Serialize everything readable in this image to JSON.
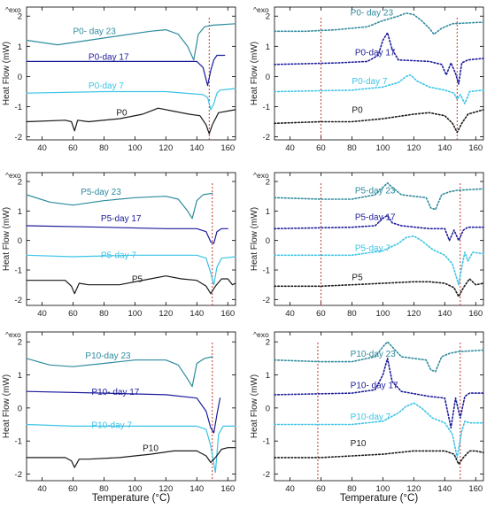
{
  "figure": {
    "xlabel": "Temperature (°C)",
    "ylabel": "Heat Flow (mW)",
    "exo_label": "^exo"
  },
  "colors": {
    "day23": "#2e8b9e",
    "day17": "#1c1c9a",
    "day7": "#3cc4e6",
    "base": "#1a1a1a",
    "marker": "#c0392b",
    "axis": "#000000"
  },
  "chart_data": [
    {
      "type": "line",
      "panel": "P0-first",
      "line_style": "solid",
      "xlim": [
        30,
        165
      ],
      "ylim": [
        -2.1,
        2.3
      ],
      "xticks": [
        40,
        60,
        80,
        100,
        120,
        140,
        160
      ],
      "yticks": [
        -2,
        -1,
        0,
        1,
        2
      ],
      "show_xtick_labels": true,
      "vlines": [
        148
      ],
      "series": [
        {
          "name": "P0- day 23",
          "key": "day23",
          "label_at": [
            60,
            1.4
          ],
          "x": [
            30,
            50,
            70,
            90,
            110,
            120,
            128,
            134,
            138,
            141,
            145,
            150,
            165
          ],
          "y": [
            1.2,
            1.05,
            1.2,
            1.35,
            1.5,
            1.55,
            1.4,
            1.0,
            0.55,
            1.4,
            1.65,
            1.7,
            1.75
          ]
        },
        {
          "name": "P0-day 17",
          "key": "day17",
          "label_at": [
            70,
            0.55
          ],
          "x": [
            30,
            80,
            120,
            140,
            144,
            147,
            149,
            151,
            153,
            158
          ],
          "y": [
            0.5,
            0.5,
            0.5,
            0.5,
            0.3,
            -0.3,
            0.2,
            0.55,
            0.7,
            0.7
          ]
        },
        {
          "name": "P0-day 7",
          "key": "day7",
          "label_at": [
            70,
            -0.4
          ],
          "x": [
            30,
            80,
            120,
            144,
            147,
            149,
            151,
            153,
            155,
            165
          ],
          "y": [
            -0.55,
            -0.5,
            -0.5,
            -0.6,
            -0.7,
            -1.1,
            -0.9,
            -0.55,
            -0.45,
            -0.4
          ]
        },
        {
          "name": "P0",
          "key": "base",
          "label_at": [
            88,
            -1.3
          ],
          "x": [
            30,
            55,
            59,
            61,
            63,
            70,
            90,
            105,
            115,
            125,
            135,
            142,
            146,
            148,
            150,
            154,
            165
          ],
          "y": [
            -1.5,
            -1.45,
            -1.5,
            -1.8,
            -1.45,
            -1.5,
            -1.4,
            -1.25,
            -1.05,
            -1.15,
            -1.25,
            -1.3,
            -1.6,
            -1.9,
            -1.6,
            -1.2,
            -1.1
          ]
        }
      ]
    },
    {
      "type": "line",
      "panel": "P0-second",
      "line_style": "dotted",
      "xlim": [
        30,
        165
      ],
      "ylim": [
        -2.1,
        2.3
      ],
      "xticks": [
        40,
        60,
        80,
        100,
        120,
        140,
        160
      ],
      "yticks": [
        -2,
        -1,
        0,
        1,
        2
      ],
      "show_xtick_labels": true,
      "vlines": [
        60,
        148
      ],
      "series": [
        {
          "name": "P0- day 23",
          "key": "day23",
          "label_at": [
            79,
            2.02
          ],
          "x": [
            30,
            50,
            70,
            90,
            100,
            110,
            115,
            120,
            125,
            130,
            133,
            138,
            145,
            165
          ],
          "y": [
            1.5,
            1.5,
            1.55,
            1.65,
            1.85,
            2.0,
            2.1,
            2.05,
            1.85,
            1.6,
            1.4,
            1.6,
            1.75,
            1.8
          ]
        },
        {
          "name": "P0-day 17",
          "key": "day17",
          "label_at": [
            82,
            0.7
          ],
          "x": [
            30,
            70,
            90,
            97,
            100,
            103,
            106,
            110,
            130,
            138,
            141,
            144,
            147,
            149,
            151,
            155,
            165
          ],
          "y": [
            0.4,
            0.45,
            0.5,
            0.7,
            1.2,
            1.45,
            0.9,
            0.55,
            0.5,
            0.4,
            0.05,
            0.45,
            0.1,
            -0.25,
            0.45,
            0.55,
            0.6
          ]
        },
        {
          "name": "P0-day 7",
          "key": "day7",
          "label_at": [
            80,
            -0.25
          ],
          "x": [
            30,
            80,
            100,
            110,
            115,
            118,
            122,
            130,
            140,
            146,
            148,
            150,
            153,
            156,
            165
          ],
          "y": [
            -0.5,
            -0.45,
            -0.35,
            -0.2,
            0.0,
            0.05,
            -0.15,
            -0.35,
            -0.45,
            -0.55,
            -0.75,
            -0.6,
            -0.9,
            -0.5,
            -0.45
          ]
        },
        {
          "name": "P0",
          "key": "base",
          "label_at": [
            80,
            -1.2
          ],
          "x": [
            30,
            60,
            80,
            100,
            120,
            130,
            140,
            145,
            148,
            151,
            155,
            165
          ],
          "y": [
            -1.55,
            -1.5,
            -1.5,
            -1.4,
            -1.25,
            -1.2,
            -1.3,
            -1.55,
            -1.85,
            -1.55,
            -1.25,
            -1.1
          ]
        }
      ]
    },
    {
      "type": "line",
      "panel": "P5-first",
      "line_style": "solid",
      "xlim": [
        30,
        165
      ],
      "ylim": [
        -2.2,
        2.3
      ],
      "xticks": [
        40,
        60,
        80,
        100,
        120,
        140,
        160
      ],
      "yticks": [
        -2,
        -1,
        0,
        1,
        2
      ],
      "show_xtick_labels": true,
      "vlines": [
        150
      ],
      "series": [
        {
          "name": "P5-day 23",
          "key": "day23",
          "label_at": [
            65,
            1.55
          ],
          "x": [
            30,
            45,
            60,
            80,
            100,
            120,
            128,
            134,
            137,
            140,
            144,
            150
          ],
          "y": [
            1.55,
            1.3,
            1.2,
            1.35,
            1.45,
            1.5,
            1.4,
            1.0,
            0.75,
            1.35,
            1.55,
            1.6
          ]
        },
        {
          "name": "P5-day 17",
          "key": "day17",
          "label_at": [
            78,
            0.65
          ],
          "x": [
            30,
            80,
            120,
            140,
            146,
            149,
            151,
            153,
            156,
            160
          ],
          "y": [
            0.5,
            0.45,
            0.4,
            0.4,
            0.3,
            -0.05,
            -0.1,
            0.3,
            0.4,
            0.4
          ]
        },
        {
          "name": "P5-day 7",
          "key": "day7",
          "label_at": [
            78,
            -0.6
          ],
          "x": [
            30,
            60,
            100,
            140,
            146,
            149,
            151,
            153,
            156,
            165
          ],
          "y": [
            -0.5,
            -0.55,
            -0.5,
            -0.5,
            -0.6,
            -1.1,
            -1.5,
            -0.9,
            -0.6,
            -0.55
          ]
        },
        {
          "name": "P5",
          "key": "base",
          "label_at": [
            98,
            -1.4
          ],
          "x": [
            30,
            55,
            59,
            61,
            64,
            70,
            90,
            110,
            120,
            130,
            140,
            146,
            149,
            152,
            156,
            160,
            163,
            165
          ],
          "y": [
            -1.35,
            -1.35,
            -1.55,
            -1.8,
            -1.45,
            -1.5,
            -1.5,
            -1.3,
            -1.2,
            -1.3,
            -1.35,
            -1.55,
            -1.8,
            -1.55,
            -1.3,
            -1.3,
            -1.5,
            -1.45
          ]
        }
      ]
    },
    {
      "type": "line",
      "panel": "P5-second",
      "line_style": "dotted",
      "xlim": [
        30,
        165
      ],
      "ylim": [
        -2.2,
        2.3
      ],
      "xticks": [
        40,
        60,
        80,
        100,
        120,
        140,
        160
      ],
      "yticks": [
        -2,
        -1,
        0,
        1,
        2
      ],
      "show_xtick_labels": true,
      "vlines": [
        60,
        150
      ],
      "series": [
        {
          "name": "P5-day 23",
          "key": "day23",
          "label_at": [
            82,
            1.6
          ],
          "x": [
            30,
            60,
            80,
            95,
            100,
            103,
            106,
            112,
            120,
            128,
            131,
            134,
            138,
            143,
            148,
            165
          ],
          "y": [
            1.45,
            1.4,
            1.4,
            1.55,
            1.8,
            1.95,
            1.8,
            1.55,
            1.5,
            1.45,
            1.1,
            1.05,
            1.55,
            1.65,
            1.7,
            1.75
          ]
        },
        {
          "name": "P5-day 17",
          "key": "day17",
          "label_at": [
            82,
            0.7
          ],
          "x": [
            30,
            80,
            95,
            100,
            103,
            106,
            112,
            130,
            140,
            143,
            146,
            149,
            152,
            155,
            165
          ],
          "y": [
            0.4,
            0.45,
            0.5,
            0.75,
            0.85,
            0.6,
            0.5,
            0.4,
            0.4,
            0.0,
            0.35,
            0.0,
            0.35,
            0.45,
            0.45
          ]
        },
        {
          "name": "P5-day 7",
          "key": "day7",
          "label_at": [
            82,
            -0.35
          ],
          "x": [
            30,
            80,
            100,
            110,
            115,
            120,
            125,
            132,
            140,
            145,
            149,
            151,
            153,
            155,
            158,
            165
          ],
          "y": [
            -0.5,
            -0.5,
            -0.35,
            -0.1,
            0.1,
            0.15,
            0.0,
            -0.3,
            -0.5,
            -0.8,
            -1.5,
            -0.9,
            -0.4,
            -0.7,
            -0.4,
            -0.45
          ]
        },
        {
          "name": "P5",
          "key": "base",
          "label_at": [
            80,
            -1.35
          ],
          "x": [
            30,
            60,
            80,
            100,
            120,
            130,
            140,
            146,
            149,
            152,
            156,
            160,
            165
          ],
          "y": [
            -1.55,
            -1.55,
            -1.5,
            -1.45,
            -1.4,
            -1.4,
            -1.45,
            -1.6,
            -1.9,
            -1.6,
            -1.3,
            -1.5,
            -1.45
          ]
        }
      ]
    },
    {
      "type": "line",
      "panel": "P10-first",
      "line_style": "solid",
      "xlim": [
        30,
        165
      ],
      "ylim": [
        -2.2,
        2.3
      ],
      "xticks": [
        40,
        60,
        80,
        100,
        120,
        140,
        160
      ],
      "yticks": [
        -2,
        -1,
        0,
        1,
        2
      ],
      "show_xtick_labels": true,
      "vlines": [
        150
      ],
      "series": [
        {
          "name": "P10-day 23",
          "key": "day23",
          "label_at": [
            68,
            1.5
          ],
          "x": [
            30,
            45,
            60,
            80,
            100,
            120,
            128,
            133,
            137,
            140,
            145,
            150
          ],
          "y": [
            1.5,
            1.3,
            1.25,
            1.35,
            1.45,
            1.45,
            1.3,
            0.95,
            0.65,
            1.35,
            1.5,
            1.55
          ]
        },
        {
          "name": "P10- day 17",
          "key": "day17",
          "label_at": [
            72,
            0.4
          ],
          "x": [
            30,
            80,
            120,
            140,
            146,
            149,
            151,
            153,
            155
          ],
          "y": [
            0.5,
            0.45,
            0.4,
            0.3,
            -0.1,
            -0.6,
            -0.75,
            -0.2,
            0.3
          ]
        },
        {
          "name": "P10-day 7",
          "key": "day7",
          "label_at": [
            72,
            -0.6
          ],
          "x": [
            30,
            60,
            100,
            140,
            146,
            149,
            152,
            154,
            157,
            165
          ],
          "y": [
            -0.5,
            -0.55,
            -0.55,
            -0.55,
            -0.65,
            -1.15,
            -1.95,
            -0.8,
            -0.55,
            -0.55
          ]
        },
        {
          "name": "P10",
          "key": "base",
          "label_at": [
            105,
            -1.3
          ],
          "x": [
            30,
            55,
            59,
            61,
            64,
            70,
            90,
            110,
            125,
            140,
            146,
            149,
            152,
            156,
            160,
            165
          ],
          "y": [
            -1.5,
            -1.5,
            -1.6,
            -1.8,
            -1.55,
            -1.55,
            -1.5,
            -1.4,
            -1.3,
            -1.3,
            -1.45,
            -1.65,
            -1.5,
            -1.25,
            -1.2,
            -1.2
          ]
        }
      ]
    },
    {
      "type": "line",
      "panel": "P10-second",
      "line_style": "dotted",
      "xlim": [
        30,
        165
      ],
      "ylim": [
        -2.2,
        2.3
      ],
      "xticks": [
        40,
        60,
        80,
        100,
        120,
        140,
        160
      ],
      "yticks": [
        -2,
        -1,
        0,
        1,
        2
      ],
      "show_xtick_labels": true,
      "vlines": [
        58,
        150
      ],
      "series": [
        {
          "name": "P10-day 23",
          "key": "day23",
          "label_at": [
            79,
            1.55
          ],
          "x": [
            30,
            60,
            80,
            95,
            100,
            103,
            106,
            112,
            120,
            128,
            131,
            134,
            138,
            143,
            148,
            165
          ],
          "y": [
            1.45,
            1.4,
            1.4,
            1.55,
            1.85,
            2.0,
            1.85,
            1.55,
            1.5,
            1.45,
            1.15,
            1.1,
            1.55,
            1.65,
            1.7,
            1.75
          ]
        },
        {
          "name": "P10- day 17",
          "key": "day17",
          "label_at": [
            79,
            0.6
          ],
          "x": [
            30,
            80,
            95,
            100,
            103,
            106,
            112,
            130,
            140,
            144,
            147,
            150,
            153,
            156,
            165
          ],
          "y": [
            0.4,
            0.45,
            0.55,
            1.0,
            1.5,
            0.8,
            0.5,
            0.35,
            0.3,
            -0.6,
            0.3,
            -0.3,
            0.35,
            0.45,
            0.45
          ]
        },
        {
          "name": "P10-day 7",
          "key": "day7",
          "label_at": [
            79,
            -0.35
          ],
          "x": [
            30,
            80,
            100,
            110,
            115,
            120,
            125,
            132,
            140,
            145,
            148,
            151,
            153,
            156,
            165
          ],
          "y": [
            -0.5,
            -0.5,
            -0.4,
            -0.15,
            0.05,
            0.15,
            0.0,
            -0.3,
            -0.45,
            -0.8,
            -1.5,
            -0.7,
            -0.4,
            -0.45,
            -0.45
          ]
        },
        {
          "name": "P10",
          "key": "base",
          "label_at": [
            79,
            -1.15
          ],
          "x": [
            30,
            60,
            80,
            100,
            120,
            130,
            140,
            146,
            149,
            152,
            156,
            160,
            165
          ],
          "y": [
            -1.5,
            -1.5,
            -1.45,
            -1.4,
            -1.3,
            -1.3,
            -1.3,
            -1.4,
            -1.7,
            -1.5,
            -1.3,
            -1.3,
            -1.35
          ]
        }
      ]
    }
  ]
}
